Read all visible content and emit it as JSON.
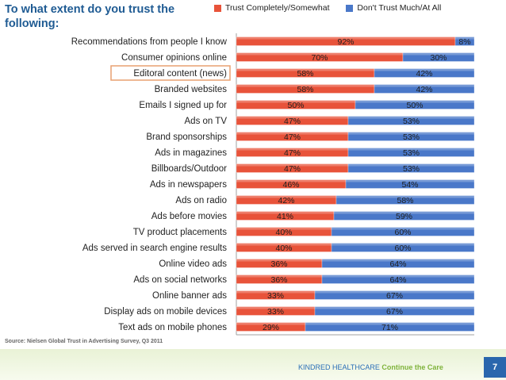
{
  "title": "To what extent do you trust the following:",
  "source": "Source: Nielsen Global Trust in Advertising Survey, Q3 2011",
  "footer": {
    "brand": "KINDRED HEALTHCARE",
    "tagline": "Continue the Care",
    "page_number": "7"
  },
  "colors": {
    "trust": "#e8533a",
    "distrust": "#4a78c9",
    "highlight_box": "#e8a070",
    "footer_blue": "#2a66ad"
  },
  "chart_data": {
    "type": "bar",
    "orientation": "horizontal",
    "stacked": true,
    "categories": [
      "Recommendations from people I know",
      "Consumer opinions online",
      "Editoral content (news)",
      "Branded websites",
      "Emails I signed up for",
      "Ads on TV",
      "Brand sponsorships",
      "Ads in magazines",
      "Billboards/Outdoor",
      "Ads in newspapers",
      "Ads on radio",
      "Ads before movies",
      "TV product placements",
      "Ads served in search engine results",
      "Online video ads",
      "Ads on social networks",
      "Online banner ads",
      "Display ads on mobile devices",
      "Text ads on mobile phones"
    ],
    "series": [
      {
        "name": "Trust Completely/Somewhat",
        "color": "#e8533a",
        "values": [
          92,
          70,
          58,
          58,
          50,
          47,
          47,
          47,
          47,
          46,
          42,
          41,
          40,
          40,
          36,
          36,
          33,
          33,
          29
        ]
      },
      {
        "name": "Don't Trust Much/At All",
        "color": "#4a78c9",
        "values": [
          8,
          30,
          42,
          42,
          50,
          53,
          53,
          53,
          53,
          54,
          58,
          59,
          60,
          60,
          64,
          64,
          67,
          67,
          71
        ]
      }
    ],
    "value_suffix": "%",
    "xlim": [
      0,
      100
    ],
    "xticks": [
      "0%",
      "10%",
      "20%",
      "30%",
      "40%",
      "50%",
      "60%",
      "70%",
      "80%",
      "90%",
      "100%"
    ],
    "highlighted_category": "Editoral content (news)",
    "legend_position": "top-right",
    "grid": false
  }
}
